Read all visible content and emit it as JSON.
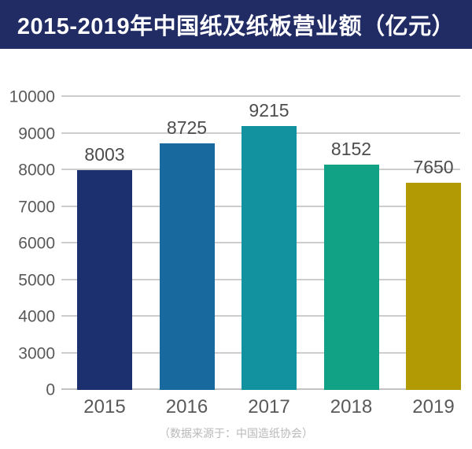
{
  "chart_data": {
    "type": "bar",
    "title": "2015-2019年中国纸及纸板营业额（亿元）",
    "categories": [
      "2015",
      "2016",
      "2017",
      "2018",
      "2019"
    ],
    "values": [
      8003,
      8725,
      9215,
      8152,
      7650
    ],
    "bar_colors": [
      "#1c2f6e",
      "#17699e",
      "#12929f",
      "#11a185",
      "#b29a05"
    ],
    "yticks": [
      0,
      3000,
      4000,
      5000,
      6000,
      7000,
      8000,
      9000,
      10000
    ],
    "ylim": [
      0,
      10000
    ],
    "axis_note": "y-axis compressed between 0 and 3000 (one gridline gap)",
    "grid": true,
    "legend": false,
    "xlabel": "",
    "ylabel": "",
    "source": "（数据来源于：中国造纸协会）"
  },
  "colors": {
    "banner_bg": "#212b64",
    "title_text": "#ffffff",
    "gridline": "#cdcdcd",
    "axis_line": "#c2c2c2",
    "tick_text": "#595959",
    "value_text": "#4d4d4d",
    "source_text": "#b9b9b9"
  }
}
